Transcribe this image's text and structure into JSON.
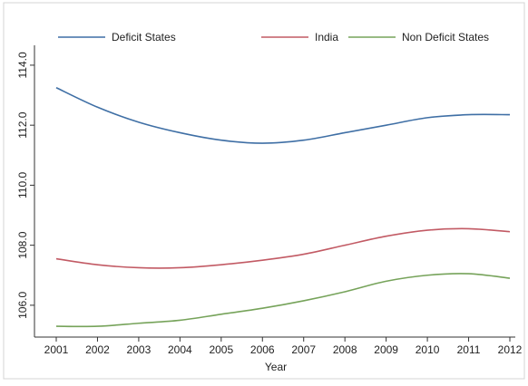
{
  "chart_data": {
    "type": "line",
    "x": [
      2001,
      2002,
      2003,
      2004,
      2005,
      2006,
      2007,
      2008,
      2009,
      2010,
      2011,
      2012
    ],
    "series": [
      {
        "name": "Deficit States",
        "color": "#3f6fa5",
        "values": [
          113.25,
          112.6,
          112.1,
          111.75,
          111.5,
          111.4,
          111.5,
          111.75,
          112.0,
          112.25,
          112.35,
          112.35
        ]
      },
      {
        "name": "India",
        "color": "#c25a64",
        "values": [
          107.55,
          107.35,
          107.25,
          107.25,
          107.35,
          107.5,
          107.7,
          108.0,
          108.3,
          108.5,
          108.55,
          108.45
        ]
      },
      {
        "name": "Non Deficit States",
        "color": "#76a35a",
        "values": [
          105.3,
          105.3,
          105.4,
          105.5,
          105.7,
          105.9,
          106.15,
          106.45,
          106.8,
          107.0,
          107.05,
          106.9
        ]
      }
    ],
    "xlabel": "Year",
    "ylabel": "",
    "xticks": [
      "2001",
      "2002",
      "2003",
      "2004",
      "2005",
      "2006",
      "2007",
      "2008",
      "2009",
      "2010",
      "2011",
      "2012"
    ],
    "yticks": [
      106.0,
      108.0,
      110.0,
      112.0,
      114.0
    ],
    "ytick_labels": [
      "106.0",
      "108.0",
      "110.0",
      "112.0",
      "114.0"
    ],
    "xlim": [
      2001,
      2012
    ],
    "ylim": [
      105.0,
      114.3
    ],
    "legend_position": "top",
    "grid": false
  }
}
